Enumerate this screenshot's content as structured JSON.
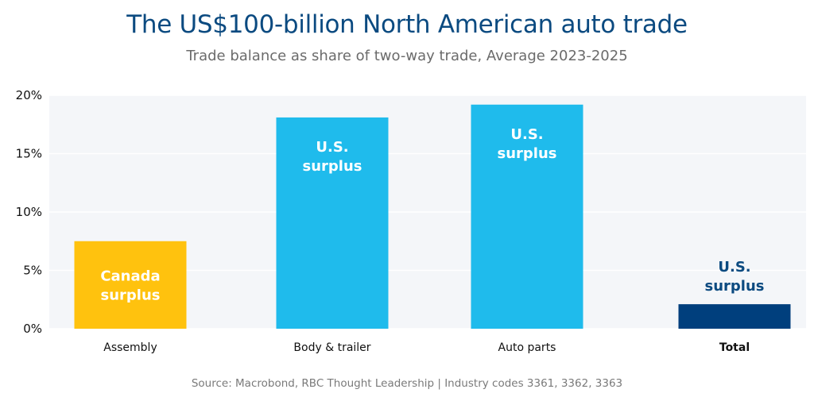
{
  "title": "The US$100-billion North American auto trade",
  "subtitle": "Trade balance as share of two-way trade, Average 2023-2025",
  "source": "Source: Macrobond, RBC Thought Leadership | Industry codes 3361, 3362, 3363",
  "chart_data": {
    "type": "bar",
    "categories": [
      "Assembly",
      "Body & trailer",
      "Auto parts",
      "Total"
    ],
    "values": [
      7.5,
      18.1,
      19.2,
      2.1
    ],
    "bold_categories": [
      "Total"
    ],
    "bar_colors": [
      "#ffc20e",
      "#1fbbec",
      "#1fbbec",
      "#003f7d"
    ],
    "bar_labels": [
      {
        "lines": [
          "Canada",
          "surplus"
        ],
        "color": "#ffffff",
        "placement": "inside"
      },
      {
        "lines": [
          "U.S.",
          "surplus"
        ],
        "color": "#ffffff",
        "placement": "inside"
      },
      {
        "lines": [
          "U.S.",
          "surplus"
        ],
        "color": "#ffffff",
        "placement": "inside"
      },
      {
        "lines": [
          "U.S.",
          "surplus"
        ],
        "color": "#0b4a80",
        "placement": "above"
      }
    ],
    "ylim": [
      0,
      20
    ],
    "yticks": [
      0,
      5,
      10,
      15,
      20
    ],
    "ytick_labels": [
      "0%",
      "5%",
      "10%",
      "15%",
      "20%"
    ],
    "xlabel": "",
    "ylabel": "",
    "grid": true,
    "plot_background": "#f4f6f9",
    "grid_color": "#ffffff"
  }
}
